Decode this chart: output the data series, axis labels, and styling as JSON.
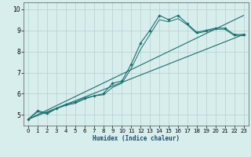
{
  "title": "",
  "xlabel": "Humidex (Indice chaleur)",
  "ylabel": "",
  "bg_color": "#d8eeed",
  "grid_color": "#b8d4d4",
  "line_color": "#1a6e6e",
  "xlim": [
    -0.5,
    23.5
  ],
  "ylim": [
    4.5,
    10.3
  ],
  "xticks": [
    0,
    1,
    2,
    3,
    4,
    5,
    6,
    7,
    8,
    9,
    10,
    11,
    12,
    13,
    14,
    15,
    16,
    17,
    18,
    19,
    20,
    21,
    22,
    23
  ],
  "yticks": [
    5,
    6,
    7,
    8,
    9,
    10
  ],
  "line1_x": [
    0,
    1,
    2,
    3,
    4,
    5,
    6,
    7,
    8,
    9,
    10,
    11,
    12,
    13,
    14,
    15,
    16,
    17,
    18,
    19,
    20,
    21,
    22,
    23
  ],
  "line1_y": [
    4.8,
    5.2,
    5.1,
    5.3,
    5.5,
    5.6,
    5.8,
    5.9,
    6.0,
    6.5,
    6.6,
    7.4,
    8.4,
    9.0,
    9.7,
    9.5,
    9.7,
    9.3,
    8.9,
    9.0,
    9.1,
    9.1,
    8.8,
    8.8
  ],
  "line2_x": [
    0,
    1,
    2,
    3,
    4,
    5,
    6,
    7,
    8,
    9,
    10,
    11,
    12,
    13,
    14,
    15,
    16,
    17,
    18,
    19,
    20,
    21,
    22,
    23
  ],
  "line2_y": [
    4.8,
    5.15,
    5.05,
    5.3,
    5.45,
    5.55,
    5.75,
    5.9,
    5.95,
    6.3,
    6.5,
    7.2,
    8.1,
    8.8,
    9.5,
    9.4,
    9.55,
    9.25,
    8.85,
    8.95,
    9.05,
    9.05,
    8.75,
    8.75
  ],
  "line3_x": [
    0,
    23
  ],
  "line3_y": [
    4.8,
    8.8
  ],
  "line4_x": [
    0,
    23
  ],
  "line4_y": [
    4.8,
    9.7
  ]
}
